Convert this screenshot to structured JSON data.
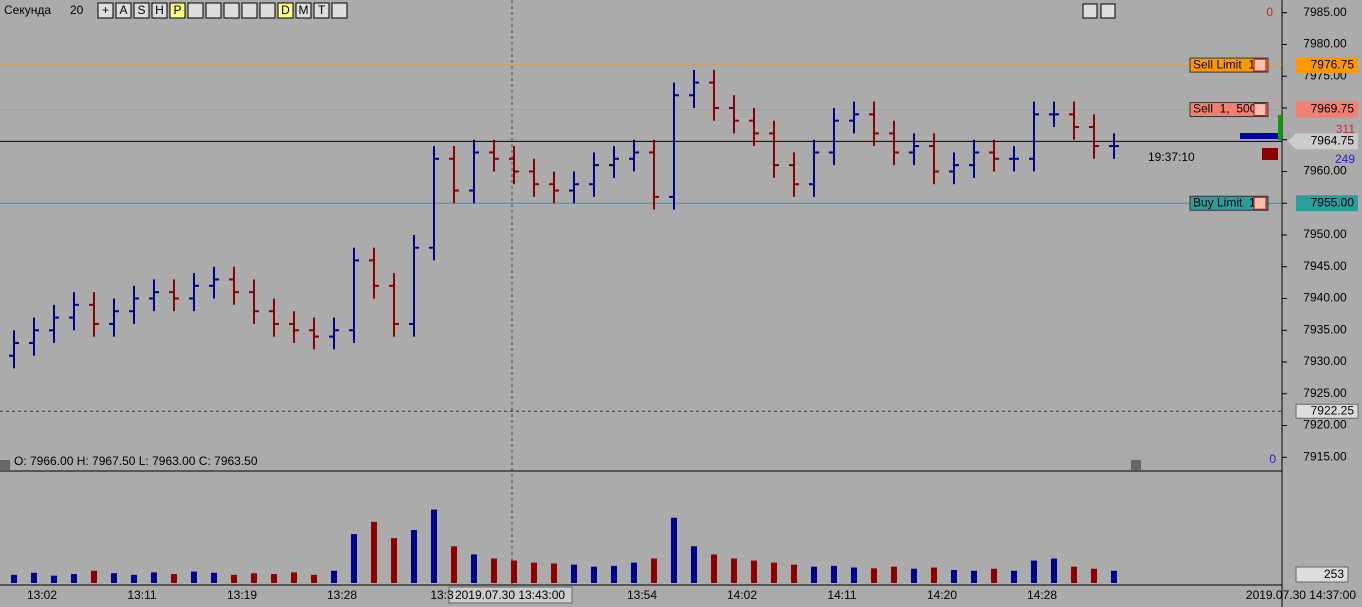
{
  "header": {
    "title": "Секунда",
    "period": "20",
    "buttons": [
      "+",
      "A",
      "S",
      "H",
      "P",
      "D",
      "M",
      "T"
    ]
  },
  "ohlc_info": "O: 7966.00  H: 7967.50  L: 7963.00  C: 7963.50",
  "crosshair_time": "2019.07.30 13:43:00",
  "last_time": "2019.07.30 14:37:00",
  "countdown": "19:37:10",
  "side_labels": {
    "top_zero": "0",
    "bottom_zero": "0",
    "ask_size": "311",
    "bid_size": "249",
    "volume_last": "253"
  },
  "chart_data": {
    "type": "ohlc",
    "up_color": "#00008b",
    "down_color": "#8b0000",
    "ylim": [
      7913,
      7987
    ],
    "yticks": [
      {
        "value": 7915,
        "label": "7915.00"
      },
      {
        "value": 7920,
        "label": "7920.00"
      },
      {
        "value": 7925,
        "label": "7925.00"
      },
      {
        "value": 7930,
        "label": "7930.00"
      },
      {
        "value": 7935,
        "label": "7935.00"
      },
      {
        "value": 7940,
        "label": "7940.00"
      },
      {
        "value": 7945,
        "label": "7945.00"
      },
      {
        "value": 7950,
        "label": "7950.00"
      },
      {
        "value": 7955,
        "label": "7955.00"
      },
      {
        "value": 7960,
        "label": "7960.00"
      },
      {
        "value": 7965,
        "label": "7965.00"
      },
      {
        "value": 7970,
        "label": "7970.00"
      },
      {
        "value": 7975,
        "label": "7975.00"
      },
      {
        "value": 7980,
        "label": "7980.00"
      },
      {
        "value": 7985,
        "label": "7985.00"
      }
    ],
    "time_labels": [
      "13:02",
      "13:11",
      "13:19",
      "13:28",
      "13:3",
      "13:54",
      "14:02",
      "14:11",
      "14:20",
      "14:28"
    ],
    "open": [
      7931,
      7933,
      7935,
      7937,
      7939,
      7936,
      7938,
      7940,
      7941,
      7940,
      7942,
      7943,
      7941,
      7938,
      7936,
      7935,
      7934,
      7935,
      7946,
      7942,
      7936,
      7948,
      7962,
      7957,
      7963,
      7962,
      7960,
      7958,
      7957,
      7958,
      7961,
      7962,
      7963,
      7956,
      7972,
      7974,
      7970,
      7968,
      7966,
      7961,
      7958,
      7963,
      7968,
      7969,
      7966,
      7963,
      7964,
      7960,
      7961,
      7963,
      7962,
      7962,
      7969,
      7969,
      7967,
      7964
    ],
    "high": [
      7935,
      7937,
      7939,
      7941,
      7941,
      7940,
      7942,
      7943,
      7943,
      7944,
      7945,
      7945,
      7943,
      7940,
      7938,
      7937,
      7937,
      7948,
      7948,
      7944,
      7950,
      7964,
      7964,
      7965,
      7965,
      7964,
      7962,
      7960,
      7960,
      7963,
      7964,
      7965,
      7965,
      7974,
      7976,
      7976,
      7972,
      7970,
      7968,
      7963,
      7965,
      7970,
      7971,
      7971,
      7968,
      7966,
      7966,
      7963,
      7965,
      7965,
      7964,
      7971,
      7971,
      7971,
      7969,
      7966
    ],
    "low": [
      7929,
      7931,
      7933,
      7935,
      7934,
      7934,
      7936,
      7938,
      7938,
      7938,
      7940,
      7939,
      7936,
      7934,
      7933,
      7932,
      7932,
      7933,
      7940,
      7934,
      7934,
      7946,
      7955,
      7955,
      7960,
      7958,
      7956,
      7955,
      7955,
      7956,
      7959,
      7960,
      7954,
      7954,
      7970,
      7968,
      7966,
      7964,
      7959,
      7956,
      7956,
      7961,
      7966,
      7964,
      7961,
      7961,
      7958,
      7958,
      7959,
      7960,
      7960,
      7960,
      7967,
      7965,
      7962,
      7962
    ],
    "close": [
      7933,
      7935,
      7937,
      7939,
      7936,
      7938,
      7940,
      7941,
      7940,
      7942,
      7943,
      7941,
      7938,
      7936,
      7935,
      7934,
      7935,
      7946,
      7942,
      7936,
      7948,
      7962,
      7957,
      7963,
      7962,
      7960,
      7958,
      7957,
      7958,
      7961,
      7962,
      7963,
      7956,
      7972,
      7974,
      7970,
      7968,
      7966,
      7961,
      7958,
      7963,
      7968,
      7969,
      7966,
      7963,
      7964,
      7960,
      7961,
      7963,
      7962,
      7962,
      7969,
      7969,
      7967,
      7964,
      7964
    ],
    "volume": [
      20,
      25,
      18,
      22,
      30,
      24,
      20,
      26,
      22,
      28,
      25,
      20,
      24,
      22,
      26,
      20,
      30,
      120,
      150,
      110,
      130,
      180,
      90,
      70,
      60,
      55,
      50,
      48,
      45,
      40,
      42,
      50,
      60,
      160,
      90,
      70,
      60,
      55,
      50,
      45,
      40,
      42,
      38,
      36,
      40,
      35,
      38,
      32,
      30,
      35,
      30,
      55,
      60,
      40,
      35,
      30
    ],
    "volume_lim": [
      0,
      260
    ],
    "levels": [
      {
        "name": "Sell Limit  1",
        "value": 7976.75,
        "value_label": "7976.75",
        "color": "#ff9900"
      },
      {
        "name": "Sell  1,  500",
        "value": 7969.75,
        "value_label": "7969.75",
        "color": "#f08070"
      },
      {
        "name": "Buy Limit  1",
        "value": 7955,
        "value_label": "7955.00",
        "color": "#2a9d9d"
      }
    ],
    "last_price": {
      "value": 7964.75,
      "label": "7964.75"
    },
    "marker_price": {
      "value": 7922.25,
      "label": "7922.25"
    }
  }
}
